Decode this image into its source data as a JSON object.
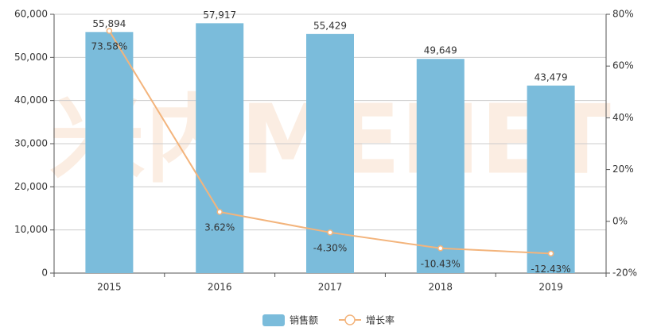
{
  "chart_data": {
    "type": "bar",
    "watermark": "米内MENET",
    "categories": [
      "2015",
      "2016",
      "2017",
      "2018",
      "2019"
    ],
    "series": [
      {
        "name": "销售额",
        "type": "bar",
        "color": "#7bbcdb",
        "values": [
          55894,
          57917,
          55429,
          49649,
          43479
        ],
        "value_labels": [
          "55,894",
          "57,917",
          "55,429",
          "49,649",
          "43,479"
        ]
      },
      {
        "name": "增长率",
        "type": "line",
        "axis": "y2",
        "color": "#f3b47c",
        "values": [
          73.58,
          3.62,
          -4.3,
          -10.43,
          -12.43
        ],
        "value_labels": [
          "73.58%",
          "3.62%",
          "-4.30%",
          "-10.43%",
          "-12.43%"
        ]
      }
    ],
    "ylim": [
      0,
      60000
    ],
    "yticks": [
      0,
      {
        "value": 10000,
        "label": "10,000"
      },
      {
        "value": 20000,
        "label": "20,000"
      },
      {
        "value": 30000,
        "label": "30,000"
      },
      {
        "value": 40000,
        "label": "40,000"
      },
      {
        "value": 50000,
        "label": "50,000"
      },
      {
        "value": 60000,
        "label": "60,000"
      }
    ],
    "y2lim": [
      -20,
      80
    ],
    "y2ticks": [
      {
        "value": -20,
        "label": "-20%"
      },
      {
        "value": 0,
        "label": "0%"
      },
      {
        "value": 20,
        "label": "20%"
      },
      {
        "value": 40,
        "label": "40%"
      },
      {
        "value": 60,
        "label": "60%"
      },
      {
        "value": 80,
        "label": "80%"
      }
    ],
    "grid": true
  }
}
